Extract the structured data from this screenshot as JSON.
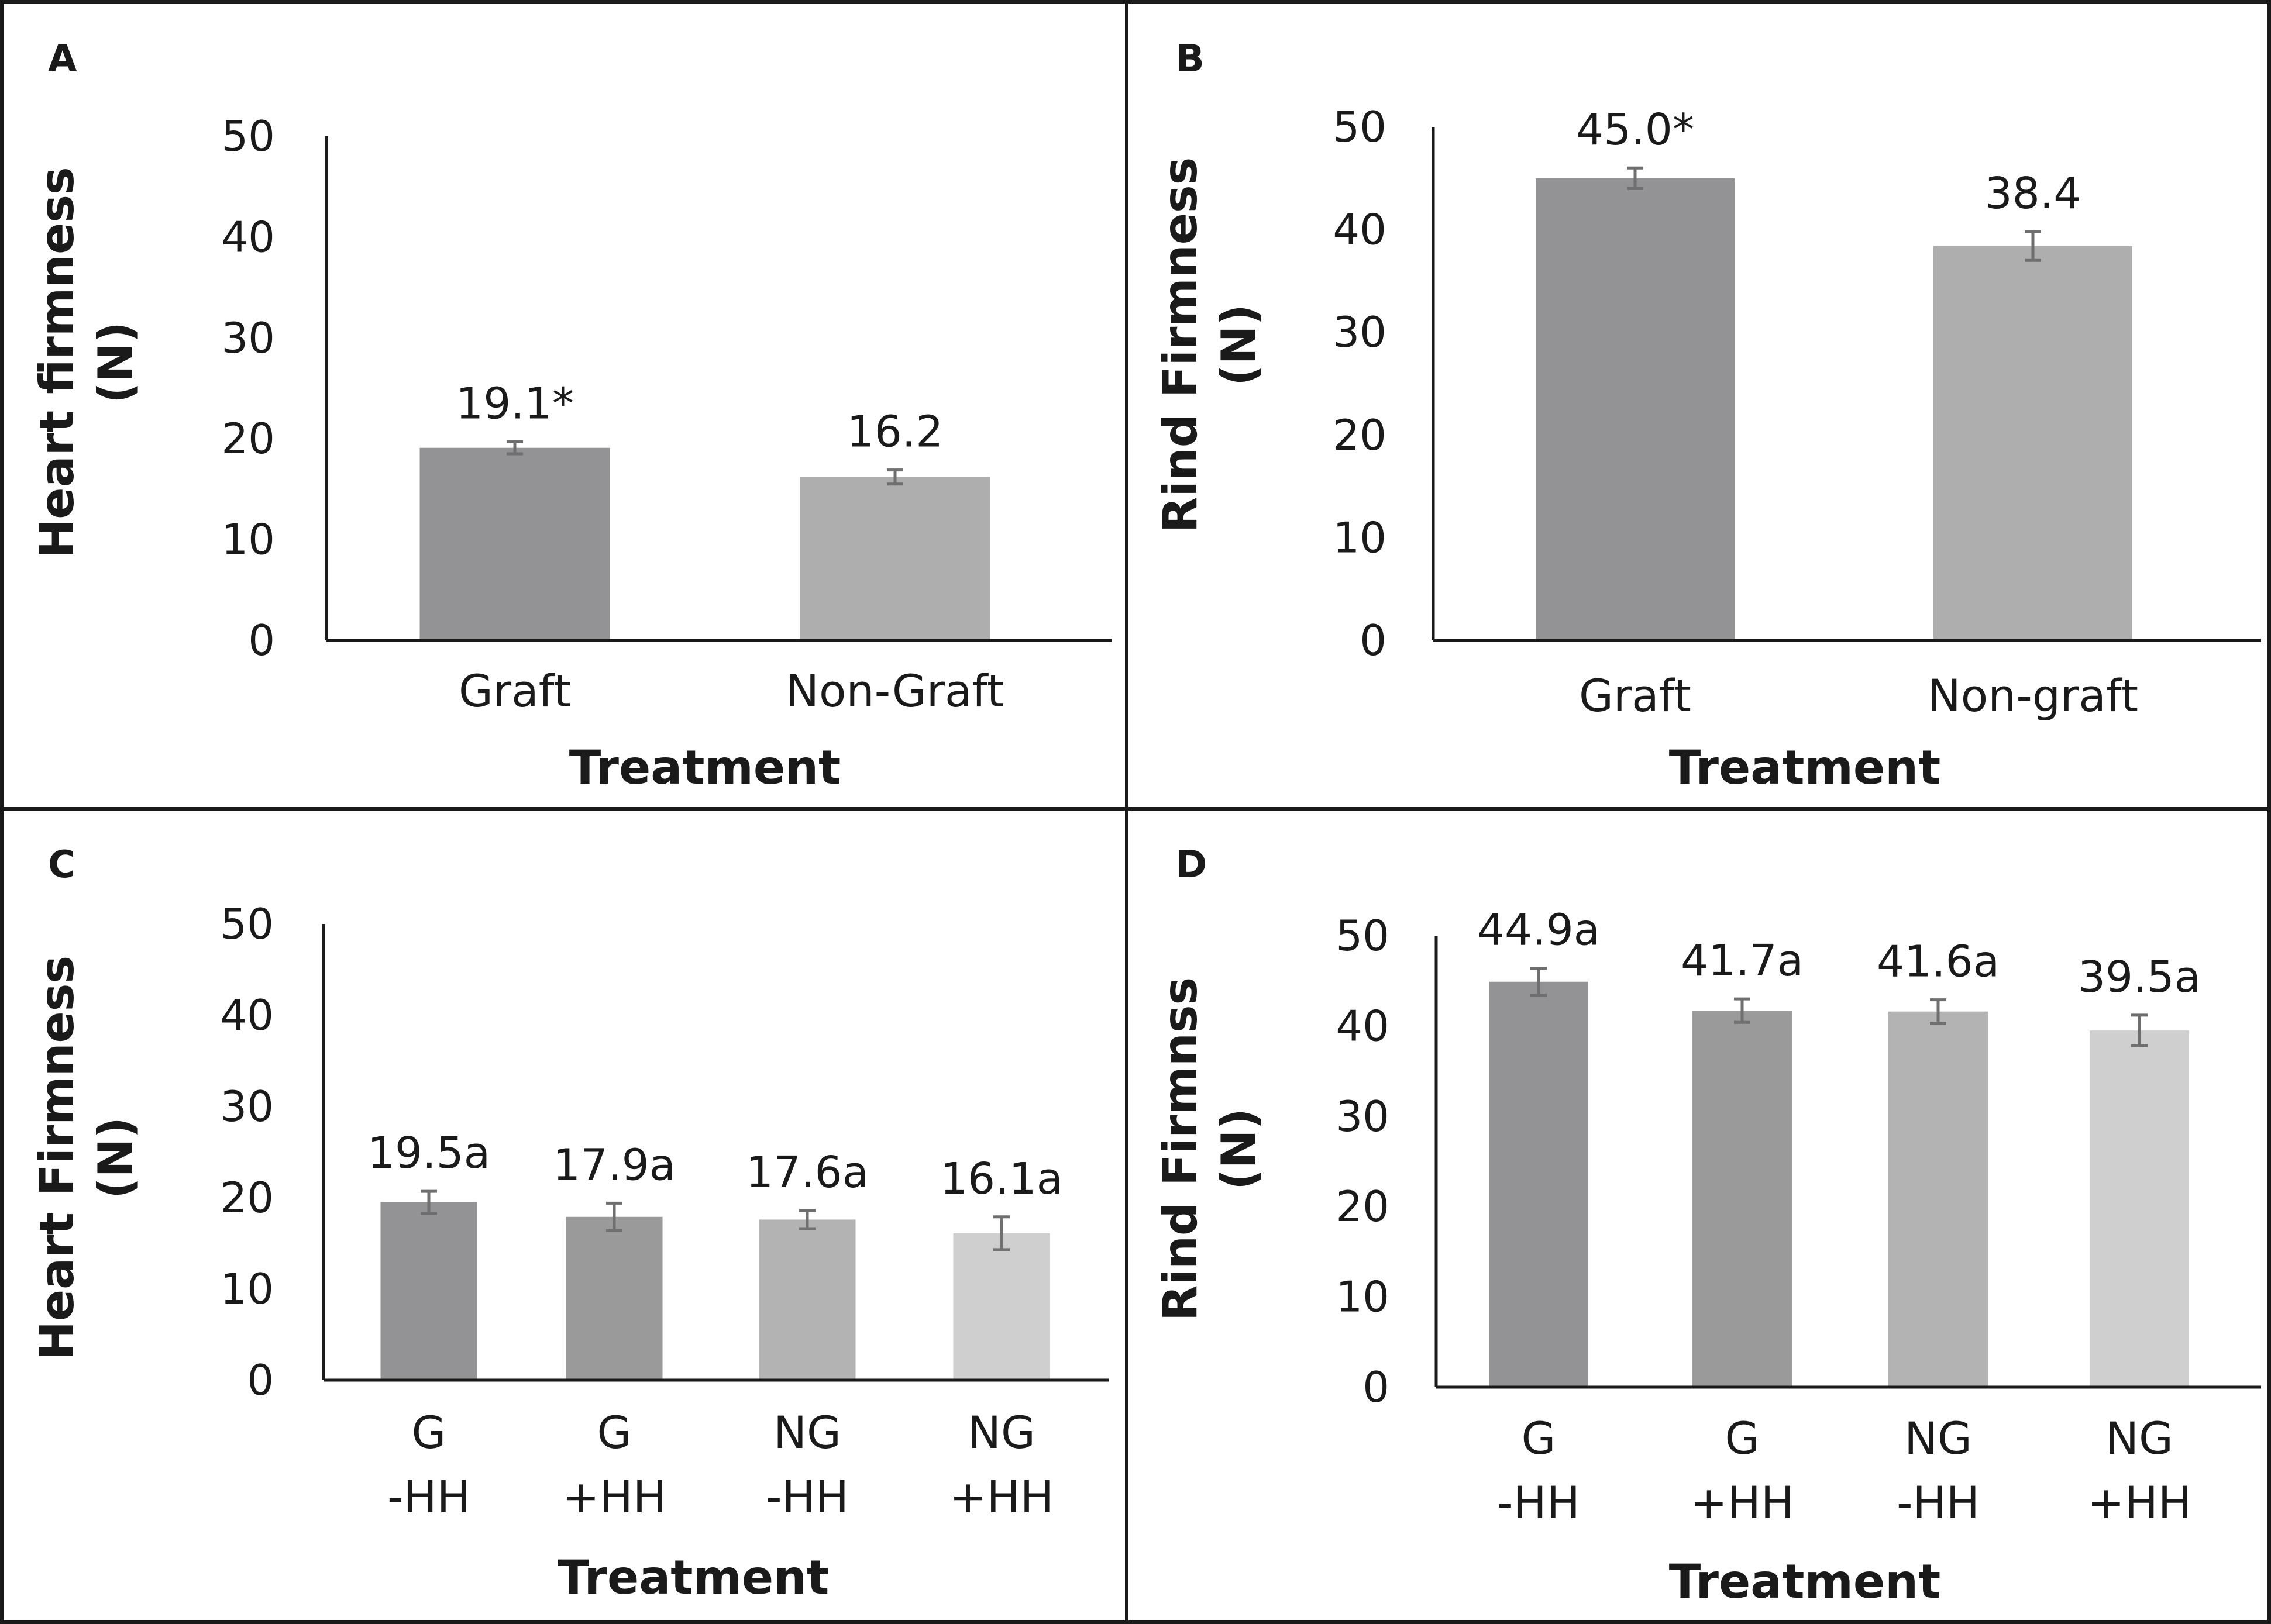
{
  "chart_data": [
    {
      "type": "bar",
      "panel": "A",
      "title": "",
      "xlabel": "Treatment",
      "ylabel_lines": [
        "Heart firmness",
        "(N)"
      ],
      "ylim": [
        0,
        50
      ],
      "yticks": [
        "0",
        "10",
        "20",
        "30",
        "40",
        "50"
      ],
      "categories": [
        [
          "Graft"
        ],
        [
          "Non-Graft"
        ]
      ],
      "values": [
        19.1,
        16.2
      ],
      "errors": [
        0.6,
        0.7
      ],
      "labels": [
        "19.1*",
        "16.2"
      ],
      "colors": [
        "#939396",
        "#aeaeae"
      ]
    },
    {
      "type": "bar",
      "panel": "B",
      "title": "",
      "xlabel": "Treatment",
      "ylabel_lines": [
        "Rind Firmness",
        "(N)"
      ],
      "ylim": [
        0,
        50
      ],
      "yticks": [
        "0",
        "10",
        "20",
        "30",
        "40",
        "50"
      ],
      "categories": [
        [
          "Graft"
        ],
        [
          "Non-graft"
        ]
      ],
      "values": [
        45.0,
        38.4
      ],
      "errors": [
        1.0,
        1.4
      ],
      "labels": [
        "45.0*",
        "38.4"
      ],
      "colors": [
        "#939396",
        "#aeaeae"
      ]
    },
    {
      "type": "bar",
      "panel": "C",
      "title": "",
      "xlabel": "Treatment",
      "ylabel_lines": [
        "Heart Firmness",
        "(N)"
      ],
      "ylim": [
        0,
        50
      ],
      "yticks": [
        "0",
        "10",
        "20",
        "30",
        "40",
        "50"
      ],
      "categories": [
        [
          "G",
          "-HH"
        ],
        [
          "G",
          "+HH"
        ],
        [
          "NG",
          "-HH"
        ],
        [
          "NG",
          "+HH"
        ]
      ],
      "values": [
        19.5,
        17.9,
        17.6,
        16.1
      ],
      "errors": [
        1.2,
        1.5,
        1.0,
        1.8
      ],
      "labels": [
        "19.5a",
        "17.9a",
        "17.6a",
        "16.1a"
      ],
      "colors": [
        "#939396",
        "#9a9a9a",
        "#b3b3b3",
        "#cfcfcf"
      ]
    },
    {
      "type": "bar",
      "panel": "D",
      "title": "",
      "xlabel": "Treatment",
      "ylabel_lines": [
        "Rind Firmnss",
        "(N)"
      ],
      "ylim": [
        0,
        50
      ],
      "yticks": [
        "0",
        "10",
        "20",
        "30",
        "40",
        "50"
      ],
      "categories": [
        [
          "G",
          "-HH"
        ],
        [
          "G",
          "+HH"
        ],
        [
          "NG",
          "-HH"
        ],
        [
          "NG",
          "+HH"
        ]
      ],
      "values": [
        44.9,
        41.7,
        41.6,
        39.5
      ],
      "errors": [
        1.5,
        1.3,
        1.3,
        1.7
      ],
      "labels": [
        "44.9a",
        "41.7a",
        "41.6a",
        "39.5a"
      ],
      "colors": [
        "#939396",
        "#9a9a9a",
        "#b3b3b3",
        "#cfcfcf"
      ]
    }
  ],
  "style": {
    "panel_border": "#1a1a1a",
    "axis_color": "#1a1a1a",
    "error_bar_color": "#6f6f6f",
    "text_color": "#1a1a1a"
  }
}
